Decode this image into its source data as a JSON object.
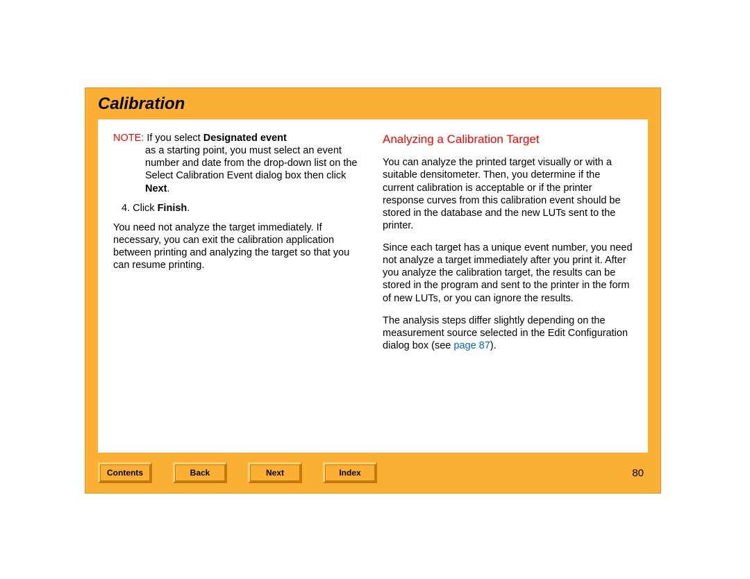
{
  "header": {
    "title": "Calibration"
  },
  "left": {
    "note_label": "NOTE:",
    "note_lead": " If you select ",
    "note_bold1": "Designated event",
    "note_mid": " as a starting point, you must select an event number and date from the drop-down list on the Select Calibration Event dialog box then click ",
    "note_bold2": "Next",
    "note_end": ".",
    "step_num": "4.",
    "step_lead": " Click ",
    "step_bold": "Finish",
    "step_end": ".",
    "para1": "You need not analyze the target immediately. If necessary, you can exit the calibration application between printing and analyzing the target so that you can resume printing."
  },
  "right": {
    "heading": "Analyzing a Calibration Target",
    "para1": "You can analyze the printed target visually or with a suitable densitometer. Then, you determine if the current calibration is acceptable or if the printer response curves from this calibration event should be stored in the database and the new LUTs sent to the printer.",
    "para2": "Since each target has a unique event number, you need not analyze a target immediately after you print it. After you analyze the calibration target, the results can be stored in the program and sent to the printer in the form of new LUTs, or you can ignore the results.",
    "para3_lead": "The analysis steps differ slightly depending on the measurement source selected in the Edit Configuration dialog box (see ",
    "para3_link": "page 87",
    "para3_end": ")."
  },
  "footer": {
    "contents": "Contents",
    "back": "Back",
    "next": "Next",
    "index": "Index",
    "page_number": "80"
  }
}
